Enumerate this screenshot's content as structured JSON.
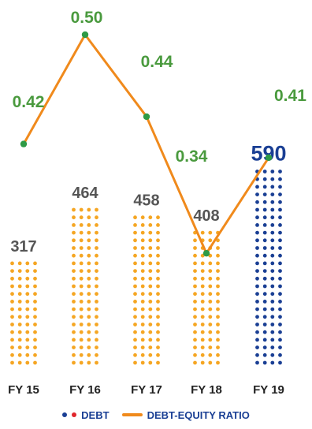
{
  "chart_data": {
    "type": "bar",
    "categories": [
      "FY 15",
      "FY 16",
      "FY 17",
      "FY 18",
      "FY 19"
    ],
    "series": [
      {
        "name": "DEBT",
        "values": [
          317,
          464,
          458,
          408,
          590
        ]
      },
      {
        "name": "DEBT-EQUITY RATIO",
        "type": "line",
        "values": [
          0.42,
          0.5,
          0.44,
          0.34,
          0.41
        ]
      }
    ],
    "value_labels": [
      "317",
      "464",
      "458",
      "408",
      "590"
    ],
    "ratio_labels": [
      "0.42",
      "0.50",
      "0.44",
      "0.34",
      "0.41"
    ],
    "highlight_index": 4,
    "colors": {
      "bar": "#f5a623",
      "bar_highlight": "#1a3f94",
      "line": "#f08a1c",
      "marker": "#2e9a46",
      "ratio_label": "#4a9a3e",
      "value_label": "#555555",
      "legend_text": "#1a3f94",
      "legend_dot_red": "#e0262c"
    },
    "legend": {
      "placement": "bottom",
      "items": [
        {
          "label": "DEBT",
          "symbol": "dots"
        },
        {
          "label": "DEBT-EQUITY RATIO",
          "symbol": "line"
        }
      ]
    },
    "grid": false
  }
}
